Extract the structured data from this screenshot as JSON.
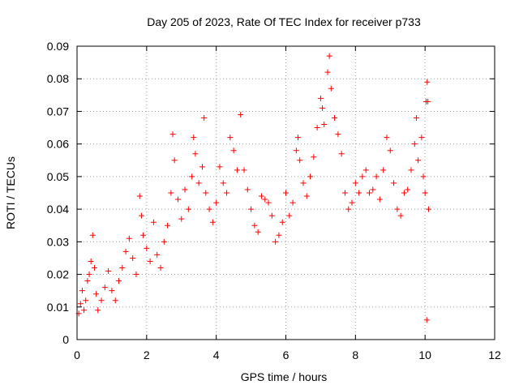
{
  "chart_data": {
    "type": "scatter",
    "title": "Day 205 of 2023, Rate Of TEC Index for receiver p733",
    "xlabel": "GPS time / hours",
    "ylabel": "ROTI / TECUs",
    "xlim": [
      0,
      12
    ],
    "ylim": [
      0,
      0.09
    ],
    "x_ticks": [
      "0",
      "2",
      "4",
      "6",
      "8",
      "10",
      "12"
    ],
    "y_ticks": [
      "0",
      "0.01",
      "0.02",
      "0.03",
      "0.04",
      "0.05",
      "0.06",
      "0.07",
      "0.08",
      "0.09"
    ],
    "grid": true,
    "marker": "plus",
    "marker_color": "#ff0000",
    "series": [
      {
        "points": [
          [
            0.05,
            0.008
          ],
          [
            0.1,
            0.011
          ],
          [
            0.15,
            0.015
          ],
          [
            0.2,
            0.009
          ],
          [
            0.25,
            0.012
          ],
          [
            0.3,
            0.018
          ],
          [
            0.35,
            0.02
          ],
          [
            0.4,
            0.024
          ],
          [
            0.45,
            0.032
          ],
          [
            0.5,
            0.022
          ],
          [
            0.55,
            0.014
          ],
          [
            0.6,
            0.009
          ],
          [
            0.7,
            0.012
          ],
          [
            0.8,
            0.016
          ],
          [
            0.9,
            0.021
          ],
          [
            1.0,
            0.015
          ],
          [
            1.1,
            0.012
          ],
          [
            1.2,
            0.018
          ],
          [
            1.3,
            0.022
          ],
          [
            1.4,
            0.027
          ],
          [
            1.5,
            0.031
          ],
          [
            1.6,
            0.025
          ],
          [
            1.7,
            0.02
          ],
          [
            1.8,
            0.044
          ],
          [
            1.85,
            0.038
          ],
          [
            1.9,
            0.032
          ],
          [
            2.0,
            0.028
          ],
          [
            2.1,
            0.024
          ],
          [
            2.2,
            0.036
          ],
          [
            2.3,
            0.026
          ],
          [
            2.4,
            0.022
          ],
          [
            2.5,
            0.03
          ],
          [
            2.6,
            0.035
          ],
          [
            2.7,
            0.045
          ],
          [
            2.75,
            0.063
          ],
          [
            2.8,
            0.055
          ],
          [
            2.9,
            0.043
          ],
          [
            3.0,
            0.037
          ],
          [
            3.1,
            0.046
          ],
          [
            3.2,
            0.04
          ],
          [
            3.3,
            0.05
          ],
          [
            3.35,
            0.062
          ],
          [
            3.4,
            0.057
          ],
          [
            3.5,
            0.048
          ],
          [
            3.6,
            0.053
          ],
          [
            3.65,
            0.068
          ],
          [
            3.7,
            0.045
          ],
          [
            3.8,
            0.04
          ],
          [
            3.9,
            0.036
          ],
          [
            4.0,
            0.042
          ],
          [
            4.1,
            0.053
          ],
          [
            4.2,
            0.048
          ],
          [
            4.3,
            0.045
          ],
          [
            4.4,
            0.062
          ],
          [
            4.5,
            0.058
          ],
          [
            4.6,
            0.052
          ],
          [
            4.7,
            0.069
          ],
          [
            4.8,
            0.052
          ],
          [
            4.9,
            0.046
          ],
          [
            5.0,
            0.04
          ],
          [
            5.1,
            0.035
          ],
          [
            5.2,
            0.033
          ],
          [
            5.3,
            0.044
          ],
          [
            5.4,
            0.043
          ],
          [
            5.5,
            0.042
          ],
          [
            5.6,
            0.038
          ],
          [
            5.7,
            0.03
          ],
          [
            5.8,
            0.032
          ],
          [
            5.9,
            0.036
          ],
          [
            6.0,
            0.045
          ],
          [
            6.1,
            0.038
          ],
          [
            6.2,
            0.042
          ],
          [
            6.3,
            0.058
          ],
          [
            6.35,
            0.062
          ],
          [
            6.4,
            0.055
          ],
          [
            6.5,
            0.048
          ],
          [
            6.6,
            0.044
          ],
          [
            6.7,
            0.05
          ],
          [
            6.8,
            0.056
          ],
          [
            6.9,
            0.065
          ],
          [
            7.0,
            0.074
          ],
          [
            7.05,
            0.071
          ],
          [
            7.1,
            0.066
          ],
          [
            7.2,
            0.082
          ],
          [
            7.25,
            0.087
          ],
          [
            7.3,
            0.077
          ],
          [
            7.4,
            0.068
          ],
          [
            7.5,
            0.063
          ],
          [
            7.6,
            0.057
          ],
          [
            7.7,
            0.045
          ],
          [
            7.8,
            0.04
          ],
          [
            7.9,
            0.042
          ],
          [
            8.0,
            0.048
          ],
          [
            8.1,
            0.045
          ],
          [
            8.2,
            0.05
          ],
          [
            8.3,
            0.052
          ],
          [
            8.4,
            0.045
          ],
          [
            8.5,
            0.046
          ],
          [
            8.6,
            0.05
          ],
          [
            8.7,
            0.043
          ],
          [
            8.8,
            0.052
          ],
          [
            8.9,
            0.062
          ],
          [
            9.0,
            0.058
          ],
          [
            9.1,
            0.048
          ],
          [
            9.2,
            0.04
          ],
          [
            9.3,
            0.038
          ],
          [
            9.4,
            0.045
          ],
          [
            9.5,
            0.046
          ],
          [
            9.6,
            0.052
          ],
          [
            9.7,
            0.06
          ],
          [
            9.75,
            0.068
          ],
          [
            9.8,
            0.055
          ],
          [
            9.9,
            0.062
          ],
          [
            9.95,
            0.05
          ],
          [
            10.0,
            0.045
          ],
          [
            10.03,
            0.073
          ],
          [
            10.06,
            0.079
          ],
          [
            10.08,
            0.073
          ],
          [
            10.1,
            0.04
          ],
          [
            10.05,
            0.006
          ]
        ]
      }
    ]
  }
}
